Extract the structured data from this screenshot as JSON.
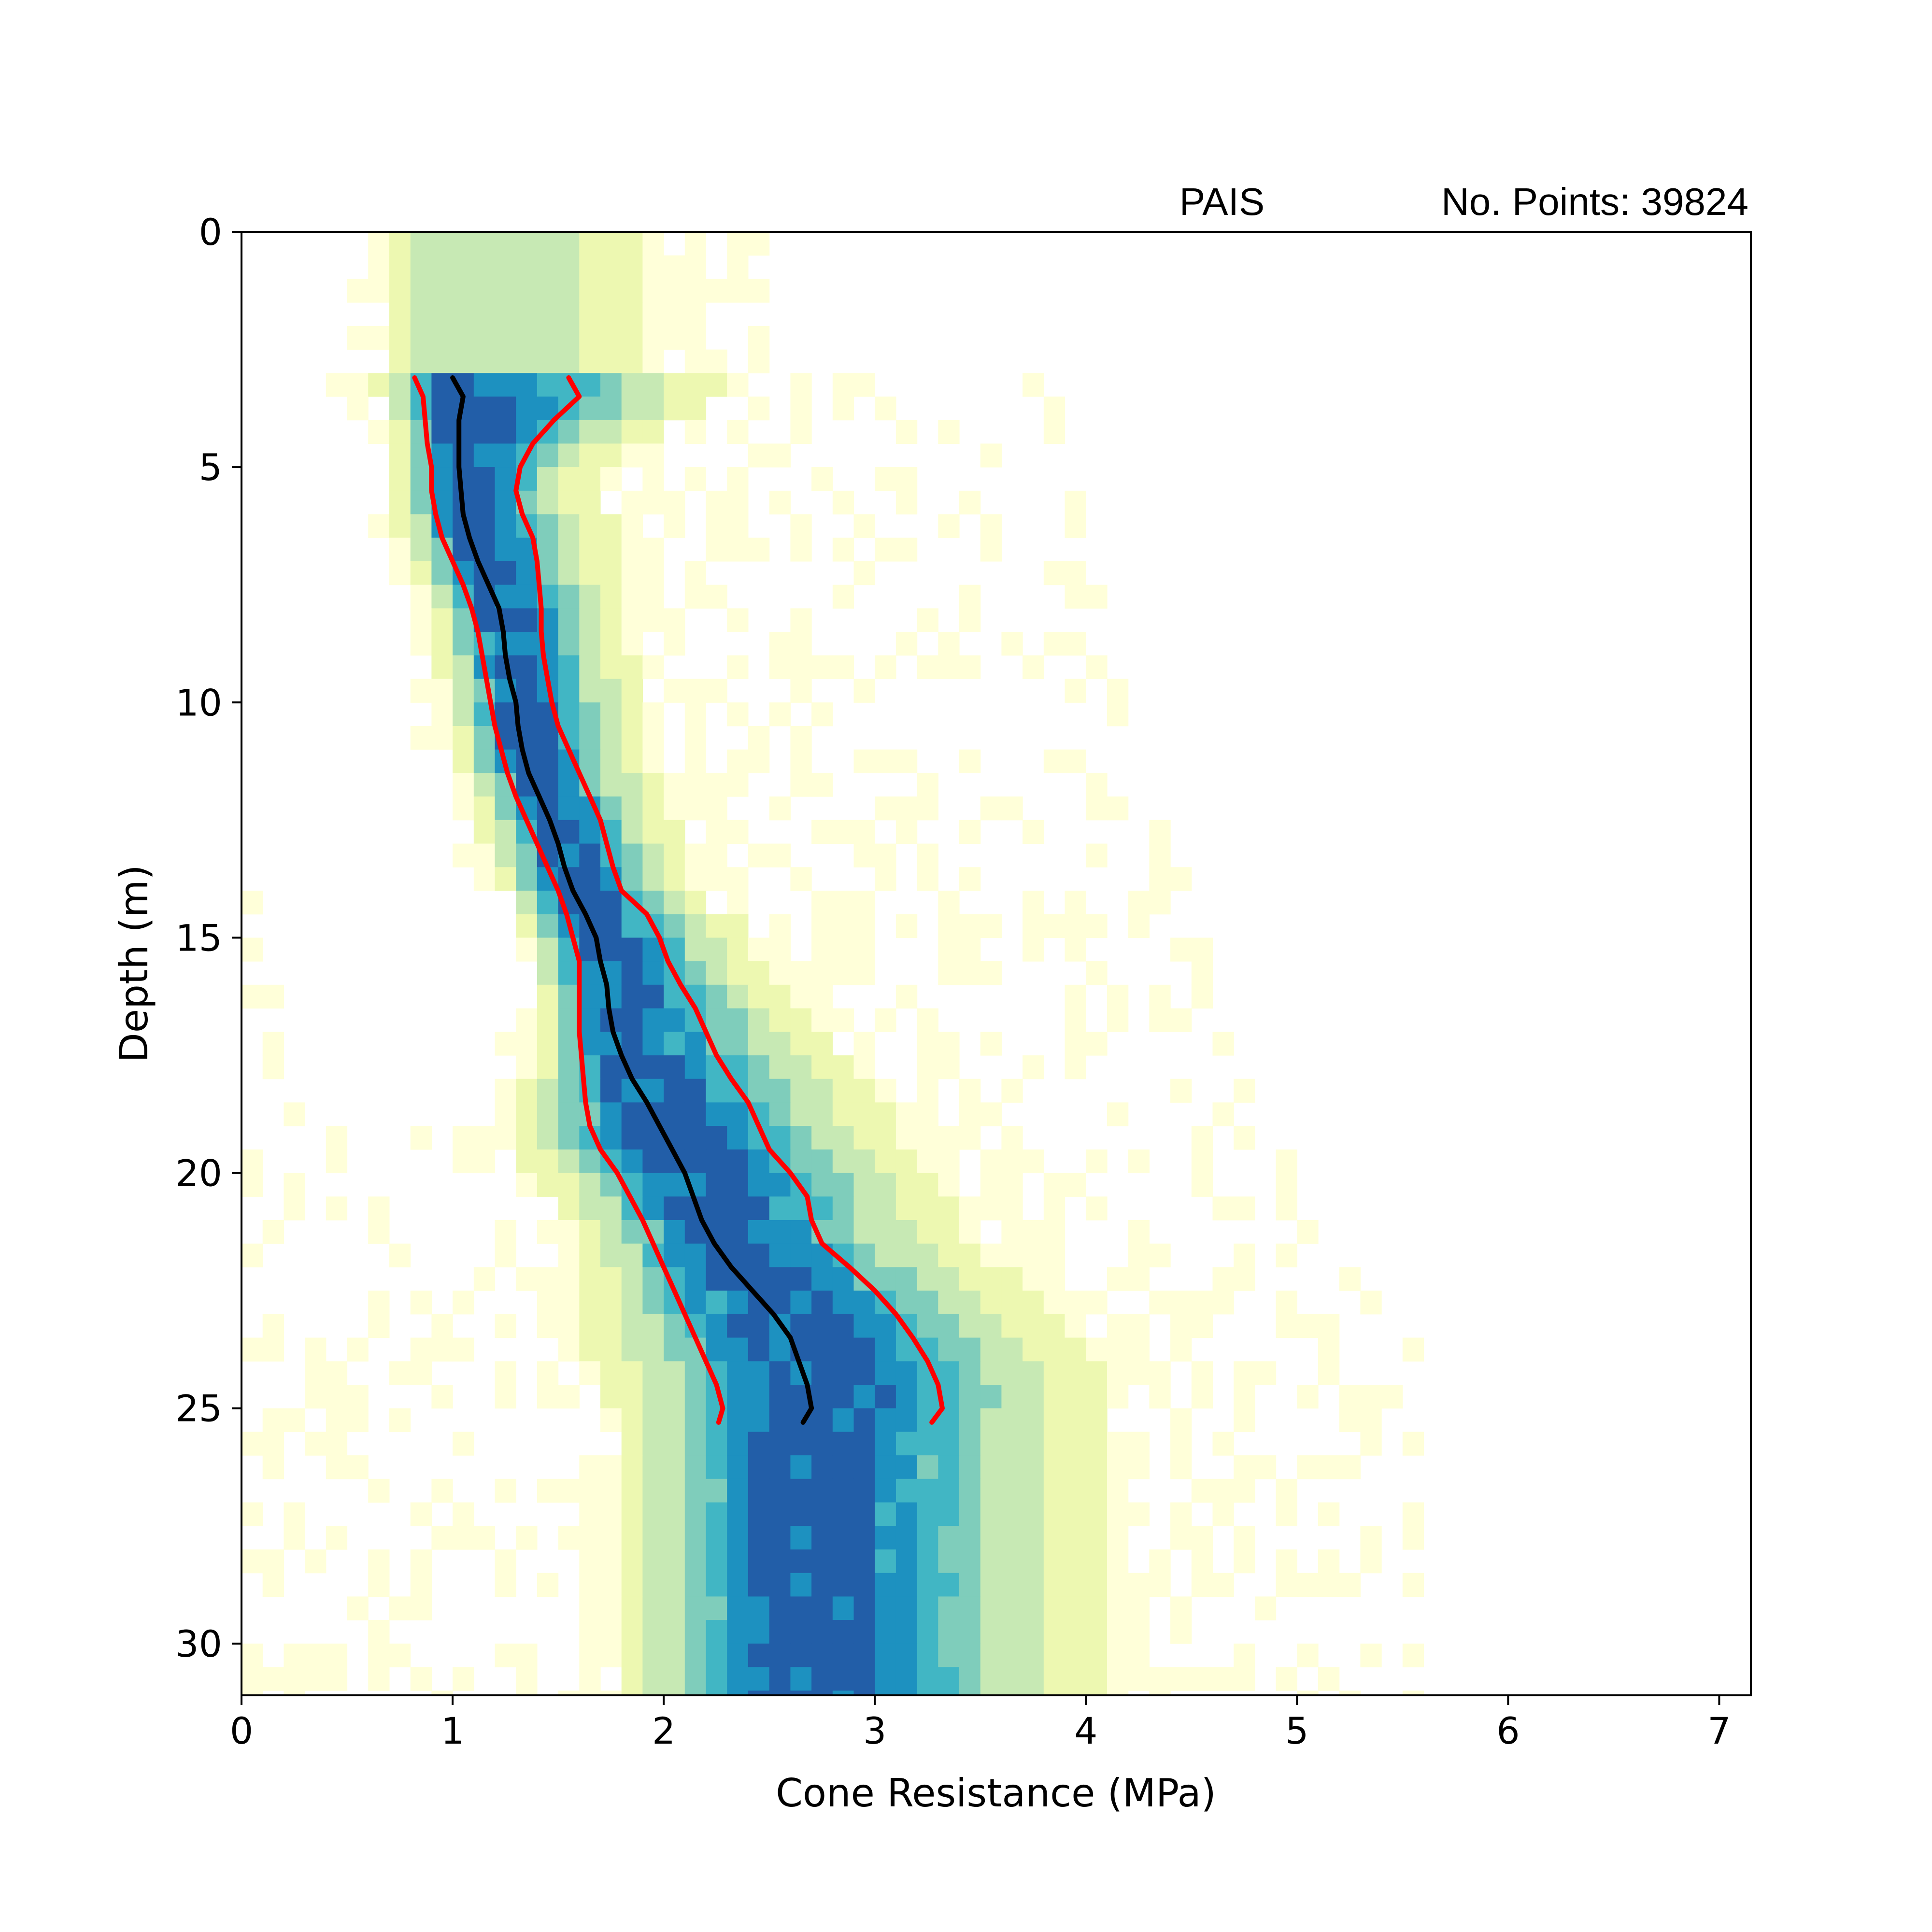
{
  "chart_data": {
    "type": "heatmap",
    "header_left": "PAIS",
    "header_right": "No. Points: 39824",
    "xlabel": "Cone Resistance (MPa)",
    "ylabel": "Depth (m)",
    "xlim": [
      0,
      7.15
    ],
    "ylim": [
      31.1,
      0
    ],
    "y_inverted": true,
    "x_ticks": [
      "0",
      "1",
      "2",
      "3",
      "4",
      "5",
      "6",
      "7"
    ],
    "y_ticks": [
      "0",
      "5",
      "10",
      "15",
      "20",
      "25",
      "30"
    ],
    "grid": false,
    "legend": "none",
    "colormap": [
      "#ffffd9",
      "#edf8b1",
      "#c7e9b4",
      "#7fcdbb",
      "#41b6c4",
      "#1d91c0",
      "#225ea8",
      "#253494"
    ],
    "heatmap_bins": {
      "x_step": 0.1,
      "y_step": 0.5
    },
    "series": [
      {
        "color": "#000000",
        "depth": [
          3.1,
          3.5,
          4,
          4.5,
          5,
          5.5,
          6,
          6.5,
          7,
          7.5,
          8,
          8.5,
          9,
          9.5,
          10,
          10.5,
          11,
          11.5,
          12,
          12.5,
          13,
          13.5,
          14,
          14.5,
          15,
          15.5,
          16,
          16.5,
          17,
          17.5,
          18,
          18.5,
          19,
          19.5,
          20,
          20.5,
          21,
          21.5,
          22,
          22.5,
          23,
          23.5,
          24,
          24.5,
          25,
          25.3
        ],
        "qc": [
          1.0,
          1.05,
          1.03,
          1.03,
          1.03,
          1.04,
          1.05,
          1.08,
          1.12,
          1.17,
          1.22,
          1.24,
          1.25,
          1.27,
          1.3,
          1.31,
          1.33,
          1.36,
          1.41,
          1.46,
          1.5,
          1.53,
          1.57,
          1.63,
          1.68,
          1.7,
          1.73,
          1.74,
          1.76,
          1.8,
          1.85,
          1.92,
          1.98,
          2.04,
          2.1,
          2.14,
          2.18,
          2.24,
          2.32,
          2.42,
          2.52,
          2.6,
          2.64,
          2.68,
          2.7,
          2.66
        ]
      },
      {
        "color": "#ff0000",
        "depth": [
          3.1,
          3.5,
          4,
          4.5,
          5,
          5.5,
          6,
          6.5,
          7,
          7.5,
          8,
          8.5,
          9,
          9.5,
          10,
          10.5,
          11,
          11.5,
          12,
          12.5,
          13,
          13.5,
          14,
          14.5,
          15,
          15.5,
          16,
          16.5,
          17,
          17.5,
          18,
          18.5,
          19,
          19.5,
          20,
          20.5,
          21,
          21.5,
          22,
          22.5,
          23,
          23.5,
          24,
          24.5,
          25,
          25.3
        ],
        "qc": [
          0.82,
          0.86,
          0.87,
          0.88,
          0.9,
          0.9,
          0.92,
          0.95,
          1.0,
          1.05,
          1.09,
          1.12,
          1.14,
          1.16,
          1.18,
          1.2,
          1.23,
          1.26,
          1.3,
          1.35,
          1.4,
          1.45,
          1.5,
          1.54,
          1.57,
          1.6,
          1.6,
          1.6,
          1.6,
          1.61,
          1.62,
          1.63,
          1.65,
          1.7,
          1.78,
          1.84,
          1.9,
          1.95,
          2.0,
          2.05,
          2.1,
          2.15,
          2.2,
          2.25,
          2.28,
          2.26
        ]
      },
      {
        "color": "#ff0000",
        "depth": [
          3.1,
          3.5,
          4,
          4.5,
          5,
          5.5,
          6,
          6.5,
          7,
          7.5,
          8,
          8.5,
          9,
          9.5,
          10,
          10.5,
          11,
          11.5,
          12,
          12.5,
          13,
          13.5,
          14,
          14.5,
          15,
          15.5,
          16,
          16.5,
          17,
          17.5,
          18,
          18.5,
          19,
          19.5,
          20,
          20.5,
          21,
          21.5,
          22,
          22.5,
          23,
          23.5,
          24,
          24.5,
          25,
          25.3
        ],
        "qc": [
          1.55,
          1.6,
          1.48,
          1.38,
          1.32,
          1.3,
          1.33,
          1.38,
          1.4,
          1.41,
          1.42,
          1.42,
          1.43,
          1.45,
          1.47,
          1.5,
          1.55,
          1.6,
          1.65,
          1.7,
          1.73,
          1.76,
          1.8,
          1.92,
          1.98,
          2.02,
          2.08,
          2.15,
          2.2,
          2.25,
          2.32,
          2.4,
          2.45,
          2.5,
          2.6,
          2.68,
          2.7,
          2.75,
          2.88,
          3.0,
          3.1,
          3.18,
          3.25,
          3.3,
          3.32,
          3.27
        ]
      }
    ]
  }
}
